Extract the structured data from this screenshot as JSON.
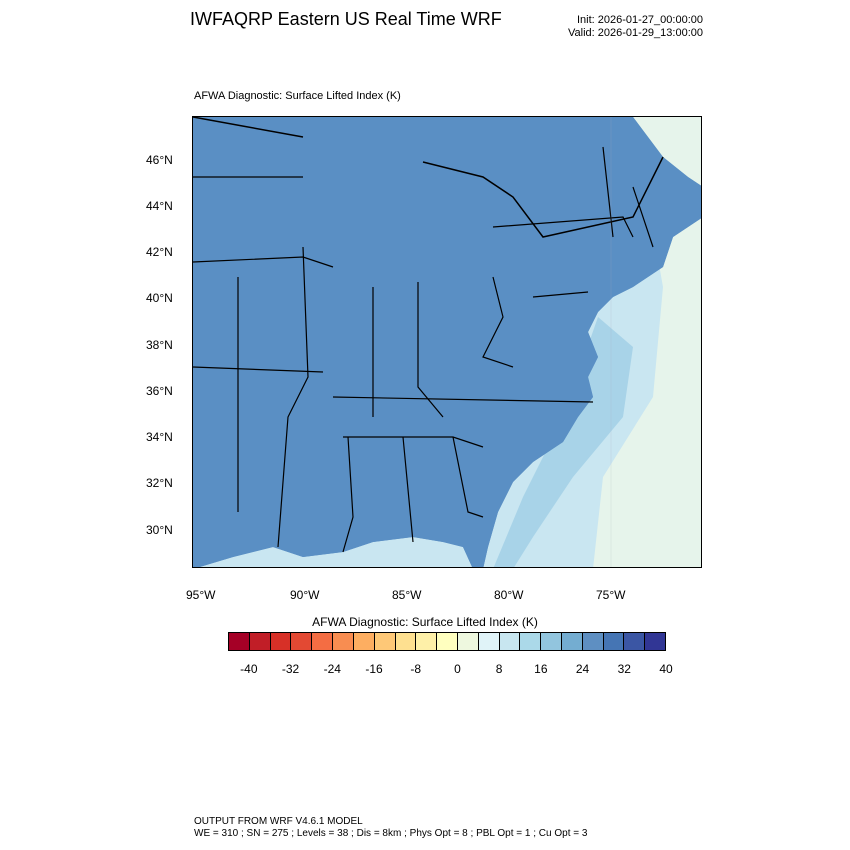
{
  "header": {
    "title": "IWFAQRP Eastern US Real Time WRF",
    "init": "Init: 2026-01-27_00:00:00",
    "valid": "Valid: 2026-01-29_13:00:00"
  },
  "map": {
    "field_label": "AFWA Diagnostic: Surface Lifted Index   (K)",
    "lat_labels": [
      "46°N",
      "44°N",
      "42°N",
      "40°N",
      "38°N",
      "36°N",
      "34°N",
      "32°N",
      "30°N"
    ],
    "lon_labels": [
      "95°W",
      "90°W",
      "85°W",
      "80°W",
      "75°W"
    ],
    "colors": {
      "land_base": "#5a8fc4",
      "land_deep": "#4a72b8",
      "land_light": "#8ab8da",
      "water_lake": "#b6daec",
      "ocean_near": "#a8d3e8",
      "ocean_mid": "#c9e6f1",
      "ocean_far": "#e6f4eb",
      "border": "#000000"
    }
  },
  "colorbar": {
    "title": "AFWA Diagnostic: Surface Lifted Index  (K)",
    "colors": [
      "#a50026",
      "#c11e27",
      "#d73027",
      "#e34933",
      "#f46d43",
      "#f88d51",
      "#fdae61",
      "#fec877",
      "#fee090",
      "#fef0a8",
      "#ffffbf",
      "#eef8df",
      "#e0f3f8",
      "#c8e6f0",
      "#abd9e9",
      "#92c5de",
      "#74add1",
      "#5e8fc2",
      "#4575b4",
      "#3b56a4",
      "#313695"
    ],
    "labels": [
      "-40",
      "-32",
      "-24",
      "-16",
      "-8",
      "0",
      "8",
      "16",
      "24",
      "32",
      "40"
    ]
  },
  "footer": {
    "line1": "OUTPUT FROM WRF V4.6.1 MODEL",
    "line2": "WE = 310 ; SN = 275 ; Levels = 38 ; Dis = 8km ; Phys Opt = 8 ; PBL Opt = 1 ; Cu Opt = 3"
  }
}
